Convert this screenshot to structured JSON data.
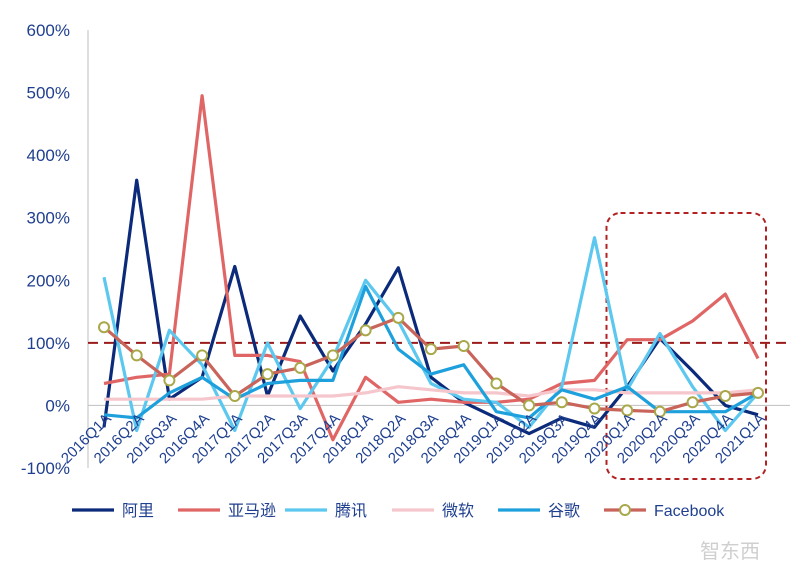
{
  "chart_data": {
    "type": "line",
    "categories": [
      "2016Q1A",
      "2016Q2A",
      "2016Q3A",
      "2016Q4A",
      "2017Q1A",
      "2017Q2A",
      "2017Q3A",
      "2017Q4A",
      "2018Q1A",
      "2018Q2A",
      "2018Q3A",
      "2018Q4A",
      "2019Q1A",
      "2019Q2A",
      "2019Q3A",
      "2019Q4A",
      "2020Q1A",
      "2020Q2A",
      "2020Q3A",
      "2020Q4A",
      "2021Q1A"
    ],
    "y_ticks": [
      "-100%",
      "0%",
      "100%",
      "200%",
      "300%",
      "400%",
      "500%",
      "600%"
    ],
    "ylim": [
      -100,
      600
    ],
    "reference_line": 100,
    "series": [
      {
        "name": "阿里",
        "color": "#0b2a7a",
        "marker": false,
        "values": [
          -35,
          360,
          10,
          45,
          222,
          15,
          143,
          55,
          130,
          220,
          45,
          5,
          -20,
          -45,
          -20,
          -35,
          30,
          107,
          55,
          0,
          -15
        ]
      },
      {
        "name": "亚马逊",
        "color": "#e06666",
        "marker": false,
        "values": [
          35,
          45,
          50,
          495,
          80,
          80,
          70,
          -55,
          45,
          5,
          10,
          5,
          5,
          10,
          35,
          40,
          105,
          105,
          135,
          178,
          75
        ]
      },
      {
        "name": "腾讯",
        "color": "#5cc8f0",
        "marker": false,
        "values": [
          205,
          -40,
          120,
          65,
          -40,
          100,
          -5,
          75,
          200,
          135,
          35,
          10,
          5,
          -35,
          30,
          268,
          25,
          115,
          30,
          -40,
          20
        ]
      },
      {
        "name": "微软",
        "color": "#f5c6cc",
        "marker": false,
        "values": [
          10,
          10,
          10,
          10,
          15,
          15,
          15,
          15,
          20,
          30,
          25,
          20,
          20,
          15,
          25,
          25,
          20,
          20,
          20,
          20,
          25
        ]
      },
      {
        "name": "谷歌",
        "color": "#1ea0dc",
        "marker": false,
        "values": [
          -15,
          -20,
          20,
          45,
          10,
          35,
          40,
          40,
          190,
          90,
          50,
          65,
          -10,
          -20,
          25,
          10,
          30,
          -10,
          -10,
          -10,
          20
        ]
      },
      {
        "name": "Facebook",
        "color": "#c8645a",
        "marker": true,
        "marker_color": "#a8a84a",
        "values": [
          125,
          80,
          40,
          80,
          15,
          50,
          60,
          80,
          120,
          140,
          90,
          95,
          35,
          0,
          5,
          -5,
          -8,
          -10,
          5,
          15,
          20
        ]
      }
    ]
  },
  "watermark": "智东西"
}
